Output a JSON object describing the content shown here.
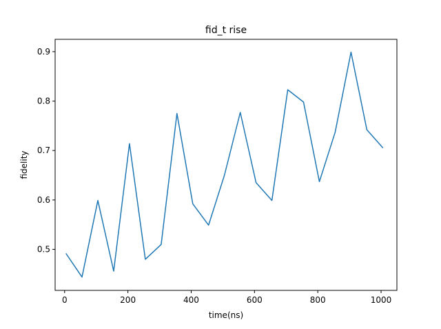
{
  "chart_data": {
    "type": "line",
    "title": "fid_t rise",
    "xlabel": "time(ns)",
    "ylabel": "fidelity",
    "xlim": [
      -30,
      1050
    ],
    "ylim": [
      0.417,
      0.925
    ],
    "x_ticks": [
      0,
      200,
      400,
      600,
      800,
      1000
    ],
    "y_ticks": [
      0.5,
      0.6,
      0.7,
      0.8,
      0.9
    ],
    "grid": false,
    "legend": "none",
    "series": [
      {
        "color": "#1f77b4",
        "x": [
          5,
          55,
          105,
          155,
          205,
          255,
          305,
          355,
          405,
          455,
          505,
          555,
          605,
          655,
          705,
          755,
          805,
          855,
          905,
          955,
          1005
        ],
        "y": [
          0.491,
          0.444,
          0.599,
          0.456,
          0.714,
          0.48,
          0.51,
          0.775,
          0.592,
          0.549,
          0.65,
          0.777,
          0.635,
          0.599,
          0.823,
          0.798,
          0.637,
          0.737,
          0.899,
          0.742,
          0.706
        ]
      }
    ]
  }
}
